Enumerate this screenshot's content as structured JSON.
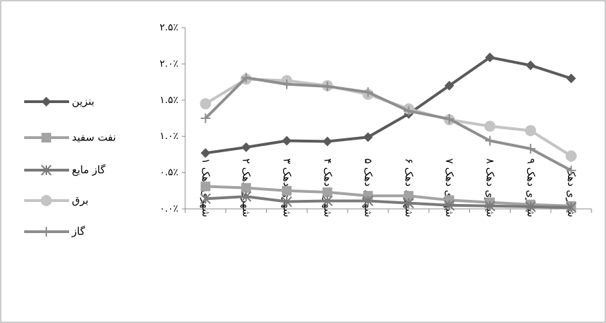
{
  "chart_data": {
    "type": "line",
    "categories": [
      "شهری دهک ۱",
      "شهری دهک ۲",
      "شهری دهک ۳",
      "شهری دهک ۴",
      "شهری دهک ۵",
      "شهری دهک ۶",
      "شهری دهک ۷",
      "شهری دهک ۸",
      "شهری دهک ۹",
      "شهری دهک ۱۰"
    ],
    "series": [
      {
        "name": "بنزین",
        "color": "#5a5a5a",
        "marker": "diamond",
        "values": [
          0.77,
          0.85,
          0.94,
          0.93,
          0.99,
          1.31,
          1.7,
          2.09,
          1.98,
          1.8
        ]
      },
      {
        "name": "نفت سفید",
        "color": "#a3a3a3",
        "marker": "square",
        "values": [
          0.31,
          0.29,
          0.25,
          0.23,
          0.18,
          0.18,
          0.12,
          0.09,
          0.06,
          0.04
        ]
      },
      {
        "name": "گاز مایع",
        "color": "#7a7a7a",
        "marker": "asterisk",
        "values": [
          0.14,
          0.17,
          0.1,
          0.11,
          0.11,
          0.08,
          0.05,
          0.04,
          0.03,
          0.02
        ]
      },
      {
        "name": "برق",
        "color": "#c4c4c4",
        "marker": "circle",
        "values": [
          1.45,
          1.79,
          1.77,
          1.7,
          1.58,
          1.38,
          1.23,
          1.14,
          1.08,
          0.73
        ]
      },
      {
        "name": "گاز",
        "color": "#8e8e8e",
        "marker": "plus",
        "values": [
          1.25,
          1.81,
          1.72,
          1.69,
          1.61,
          1.35,
          1.24,
          0.94,
          0.83,
          0.53
        ]
      }
    ],
    "ylim": [
      0,
      2.5
    ],
    "yticks": [
      {
        "value": 0,
        "label": "٠.٠٪"
      },
      {
        "value": 0.5,
        "label": "٠.۵٪"
      },
      {
        "value": 1.0,
        "label": "١.٠٪"
      },
      {
        "value": 1.5,
        "label": "١.۵٪"
      },
      {
        "value": 2.0,
        "label": "٢.٠٪"
      },
      {
        "value": 2.5,
        "label": "٢.۵٪"
      }
    ],
    "legend": "left"
  }
}
